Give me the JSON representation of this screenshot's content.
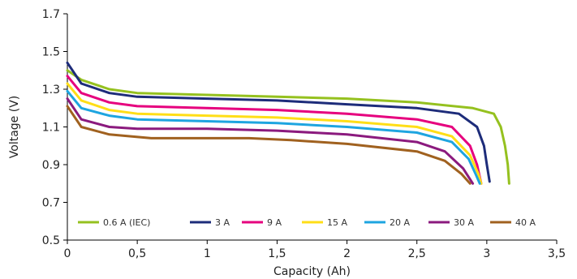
{
  "chart_data": {
    "type": "line",
    "title": "",
    "xlabel": "Capacity (Ah)",
    "ylabel": "Voltage (V)",
    "xlim": [
      0,
      3.5
    ],
    "ylim": [
      0.5,
      1.7
    ],
    "x_ticks": [
      0,
      0.5,
      1,
      1.5,
      2,
      2.5,
      3,
      3.5
    ],
    "x_tick_labels": [
      "0",
      "0,5",
      "1",
      "1,5",
      "2",
      "2,5",
      "3",
      "3,5"
    ],
    "y_ticks": [
      0.5,
      0.7,
      0.9,
      1.1,
      1.3,
      1.5,
      1.7
    ],
    "y_tick_labels": [
      "0.5",
      "0.7",
      "0.9",
      "1.1",
      "1.3",
      "1.5",
      "1.7"
    ],
    "grid": false,
    "legend_position": "bottom-inside",
    "series": [
      {
        "name": "0.6 A (IEC)",
        "color": "#95c11f",
        "points": [
          [
            0,
            1.4
          ],
          [
            0.1,
            1.35
          ],
          [
            0.3,
            1.3
          ],
          [
            0.5,
            1.28
          ],
          [
            1.0,
            1.27
          ],
          [
            1.5,
            1.26
          ],
          [
            2.0,
            1.25
          ],
          [
            2.5,
            1.23
          ],
          [
            2.9,
            1.2
          ],
          [
            3.05,
            1.17
          ],
          [
            3.1,
            1.1
          ],
          [
            3.13,
            1.0
          ],
          [
            3.15,
            0.9
          ],
          [
            3.16,
            0.8
          ]
        ]
      },
      {
        "name": "3 A",
        "color": "#1d2c7a",
        "points": [
          [
            0,
            1.44
          ],
          [
            0.1,
            1.33
          ],
          [
            0.3,
            1.28
          ],
          [
            0.5,
            1.26
          ],
          [
            1.0,
            1.25
          ],
          [
            1.5,
            1.24
          ],
          [
            2.0,
            1.22
          ],
          [
            2.5,
            1.2
          ],
          [
            2.8,
            1.17
          ],
          [
            2.93,
            1.1
          ],
          [
            2.98,
            1.0
          ],
          [
            3.0,
            0.9
          ],
          [
            3.02,
            0.81
          ]
        ]
      },
      {
        "name": "9 A",
        "color": "#e6007e",
        "points": [
          [
            0,
            1.37
          ],
          [
            0.1,
            1.28
          ],
          [
            0.3,
            1.23
          ],
          [
            0.5,
            1.21
          ],
          [
            1.0,
            1.2
          ],
          [
            1.5,
            1.19
          ],
          [
            2.0,
            1.17
          ],
          [
            2.5,
            1.14
          ],
          [
            2.75,
            1.1
          ],
          [
            2.88,
            1.0
          ],
          [
            2.93,
            0.9
          ],
          [
            2.96,
            0.8
          ]
        ]
      },
      {
        "name": "15 A",
        "color": "#ffde17",
        "points": [
          [
            0,
            1.33
          ],
          [
            0.1,
            1.24
          ],
          [
            0.3,
            1.19
          ],
          [
            0.5,
            1.17
          ],
          [
            1.0,
            1.16
          ],
          [
            1.5,
            1.15
          ],
          [
            2.0,
            1.13
          ],
          [
            2.5,
            1.1
          ],
          [
            2.75,
            1.05
          ],
          [
            2.88,
            0.95
          ],
          [
            2.94,
            0.85
          ],
          [
            2.96,
            0.8
          ]
        ]
      },
      {
        "name": "20 A",
        "color": "#1ea5e0",
        "points": [
          [
            0,
            1.29
          ],
          [
            0.1,
            1.2
          ],
          [
            0.3,
            1.16
          ],
          [
            0.5,
            1.14
          ],
          [
            1.0,
            1.13
          ],
          [
            1.5,
            1.12
          ],
          [
            2.0,
            1.1
          ],
          [
            2.5,
            1.07
          ],
          [
            2.75,
            1.02
          ],
          [
            2.87,
            0.93
          ],
          [
            2.92,
            0.85
          ],
          [
            2.95,
            0.8
          ]
        ]
      },
      {
        "name": "30 A",
        "color": "#8b1a7e",
        "points": [
          [
            0,
            1.25
          ],
          [
            0.1,
            1.14
          ],
          [
            0.3,
            1.1
          ],
          [
            0.5,
            1.09
          ],
          [
            1.0,
            1.09
          ],
          [
            1.5,
            1.08
          ],
          [
            2.0,
            1.06
          ],
          [
            2.5,
            1.02
          ],
          [
            2.7,
            0.97
          ],
          [
            2.83,
            0.88
          ],
          [
            2.9,
            0.8
          ]
        ]
      },
      {
        "name": "40 A",
        "color": "#a0611f",
        "points": [
          [
            0,
            1.21
          ],
          [
            0.1,
            1.1
          ],
          [
            0.3,
            1.06
          ],
          [
            0.6,
            1.04
          ],
          [
            1.0,
            1.04
          ],
          [
            1.3,
            1.04
          ],
          [
            1.6,
            1.03
          ],
          [
            2.0,
            1.01
          ],
          [
            2.5,
            0.97
          ],
          [
            2.7,
            0.92
          ],
          [
            2.82,
            0.85
          ],
          [
            2.88,
            0.8
          ]
        ]
      }
    ]
  }
}
